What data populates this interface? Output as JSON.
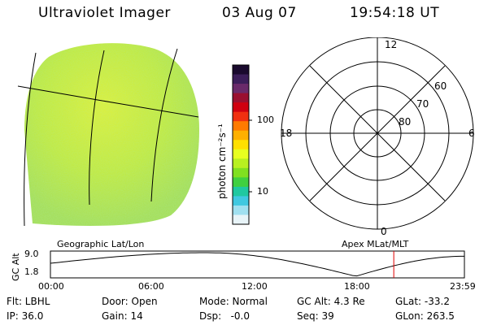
{
  "header": {
    "title": "Ultraviolet Imager",
    "date": "03 Aug 07",
    "time": "19:54:18 UT"
  },
  "colorbar": {
    "unit_label": "photon cm⁻²s⁻¹",
    "ticks": [
      "100",
      "10"
    ],
    "colors_top_to_bottom": [
      "#1a0a2e",
      "#3c1e5a",
      "#6a2a6a",
      "#9a1030",
      "#d00010",
      "#f03010",
      "#ff7a00",
      "#ffb000",
      "#ffe000",
      "#e8ff20",
      "#b8f020",
      "#80e020",
      "#40d040",
      "#20c8a0",
      "#40c8e0",
      "#a0e0f0",
      "#e8f4f8"
    ]
  },
  "left_panel": {
    "caption": "Geographic Lat/Lon"
  },
  "polar_plot": {
    "caption": "Apex MLat/MLT",
    "mlt_labels": {
      "top": "12",
      "left": "18",
      "right": "6",
      "bottom": "0"
    },
    "mlat_labels": [
      "60",
      "70",
      "80"
    ]
  },
  "timeline": {
    "ylabel": "GC Alt",
    "y_ticks": [
      "9.0",
      "1.8"
    ],
    "x_ticks": [
      "00:00",
      "06:00",
      "12:00",
      "18:00",
      "23:59"
    ],
    "marker_hour": 19.905,
    "marker_color": "#e00000"
  },
  "info": {
    "filter": "Flt: LBHL",
    "door": "Door: Open",
    "mode": "Mode: Normal",
    "gc_alt": "GC Alt: 4.3 Re",
    "glat": "GLat: -33.2",
    "ip": "IP: 36.0",
    "gain": "Gain: 14",
    "dsp": "Dsp:   -0.0",
    "seq": "Seq: 39",
    "glon": "GLon: 263.5"
  }
}
